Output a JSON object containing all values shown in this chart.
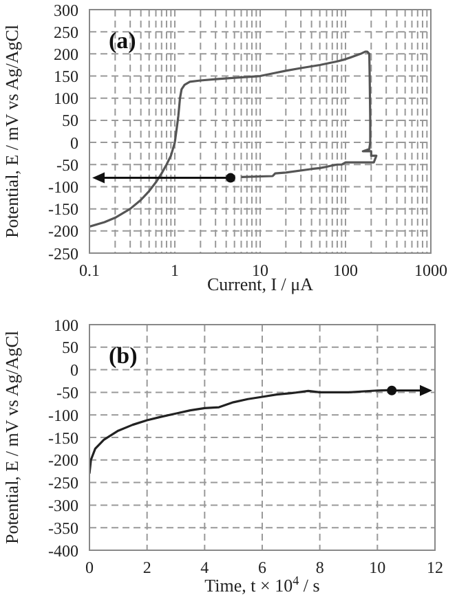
{
  "chart_data": [
    {
      "type": "line",
      "xlabel": "Current, I / μA",
      "ylabel": "Potential, E / mV vs Ag/AgCl",
      "annotations": [
        "(a)"
      ],
      "log": "x",
      "xlim": [
        0.1,
        1000
      ],
      "xticks": [
        0.1,
        1,
        10,
        100,
        1000
      ],
      "ylim": [
        -250,
        300
      ],
      "yticks": [
        -250,
        -200,
        -150,
        -100,
        -50,
        0,
        50,
        100,
        150,
        200,
        250,
        300
      ],
      "grid": true,
      "line_style": "solid",
      "series": [
        {
          "color": "#555555",
          "marker": "none",
          "x": [
            0.1,
            0.15,
            0.2,
            0.3,
            0.4,
            0.5,
            0.6,
            0.7,
            0.8,
            0.9,
            1.0,
            1.05,
            1.1,
            1.15,
            1.2,
            1.3,
            1.5,
            2,
            3,
            5,
            10,
            15,
            20,
            30,
            50,
            80,
            100,
            150,
            170,
            180,
            190,
            192,
            195,
            195,
            190,
            160,
            200,
            200,
            230,
            215,
            100,
            90,
            80,
            70,
            60,
            50,
            40,
            20,
            15,
            14,
            6
          ],
          "values": [
            -190,
            -180,
            -170,
            -150,
            -130,
            -110,
            -90,
            -70,
            -50,
            -30,
            0,
            30,
            60,
            100,
            120,
            130,
            137,
            140,
            143,
            146,
            150,
            157,
            162,
            168,
            175,
            183,
            188,
            200,
            205,
            205,
            200,
            150,
            50,
            0,
            -15,
            -20,
            -20,
            -30,
            -30,
            -45,
            -45,
            -50,
            -50,
            -52,
            -55,
            -58,
            -60,
            -68,
            -70,
            -76,
            -78
          ]
        },
        {
          "type": "scatter",
          "marker": "circle",
          "color": "#111111",
          "x": [
            4.5
          ],
          "values": [
            -80
          ]
        }
      ]
    },
    {
      "type": "line",
      "xlabel": "Time, t × 10$^{4}$ / s",
      "ylabel": "Potential, E / mV vs Ag/AgCl",
      "annotations": [
        "(b)"
      ],
      "xlim": [
        0,
        12
      ],
      "xticks": [
        0,
        2,
        4,
        6,
        8,
        10,
        12
      ],
      "ylim": [
        -400,
        100
      ],
      "yticks": [
        -400,
        -350,
        -300,
        -250,
        -200,
        -150,
        -100,
        -50,
        0,
        50,
        100
      ],
      "grid": true,
      "line_style": "solid",
      "series": [
        {
          "color": "#222222",
          "marker": "none",
          "x": [
            0,
            0.05,
            0.2,
            0.5,
            1,
            1.5,
            2,
            2.5,
            3,
            3.5,
            4,
            4.5,
            5,
            5.5,
            6,
            6.5,
            7,
            7.6,
            8,
            9,
            10,
            10.5
          ],
          "values": [
            -230,
            -200,
            -175,
            -155,
            -135,
            -122,
            -112,
            -104,
            -97,
            -90,
            -85,
            -83,
            -72,
            -65,
            -60,
            -55,
            -52,
            -47,
            -50,
            -50,
            -46,
            -45
          ]
        },
        {
          "type": "scatter",
          "marker": "circle",
          "color": "#111111",
          "x": [
            10.5
          ],
          "values": [
            -46
          ]
        }
      ]
    }
  ]
}
